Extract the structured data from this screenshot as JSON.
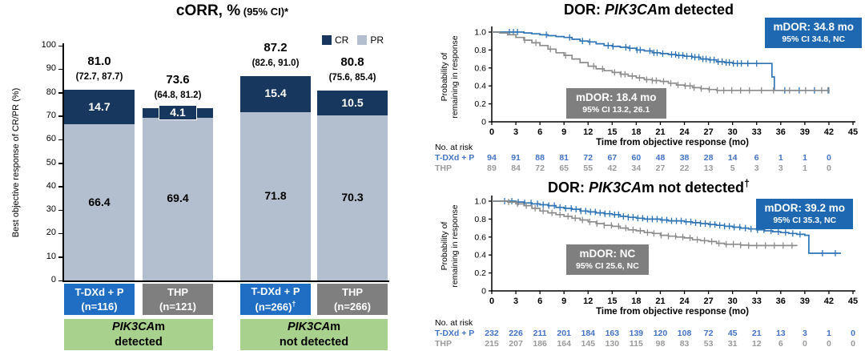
{
  "chart_data": [
    {
      "type": "bar",
      "stacked": true,
      "title": "cORR, %",
      "title_note": "(95% CI)*",
      "ylabel": "Best objective response of CR/PR (%)",
      "ylim": [
        0,
        100
      ],
      "yticks": [
        0,
        10,
        20,
        30,
        40,
        50,
        60,
        70,
        80,
        90,
        100
      ],
      "legend": [
        {
          "label": "CR",
          "color": "#17375E"
        },
        {
          "label": "PR",
          "color": "#B3BECE"
        }
      ],
      "groups": [
        {
          "label_italic": "PIK3CA",
          "label_rest": "m",
          "label_line2": "detected",
          "bars": [
            {
              "arm": "T-DXd + P",
              "n": "(n=116)",
              "sup": "",
              "color": "#1F6EC3",
              "total": "81.0",
              "ci": "(72.7, 87.7)",
              "cr": 14.7,
              "pr": 66.4,
              "cr_label": "14.7",
              "pr_label": "66.4",
              "cr_boxed": false
            },
            {
              "arm": "THP",
              "n": "(n=121)",
              "sup": "",
              "color": "#7F7F7F",
              "total": "73.6",
              "ci": "(64.8, 81.2)",
              "cr": 4.1,
              "pr": 69.4,
              "cr_label": "4.1",
              "pr_label": "69.4",
              "cr_boxed": true
            }
          ]
        },
        {
          "label_italic": "PIK3CA",
          "label_rest": "m",
          "label_line2": "not detected",
          "bars": [
            {
              "arm": "T-DXd + P",
              "n": "(n=266)",
              "sup": "†",
              "color": "#1F6EC3",
              "total": "87.2",
              "ci": "(82.6, 91.0)",
              "cr": 15.4,
              "pr": 71.8,
              "cr_label": "15.4",
              "pr_label": "71.8",
              "cr_boxed": false
            },
            {
              "arm": "THP",
              "n": "(n=266)",
              "sup": "",
              "color": "#7F7F7F",
              "total": "80.8",
              "ci": "(75.6, 85.4)",
              "cr": 10.5,
              "pr": 70.3,
              "cr_label": "10.5",
              "pr_label": "70.3",
              "cr_boxed": false
            }
          ]
        }
      ],
      "group_box_color": "#A9D18E"
    },
    {
      "type": "line",
      "subtype": "kaplan-meier",
      "title_prefix": "DOR: ",
      "title_italic": "PIK3CA",
      "title_suffix": "m detected",
      "title_sup": "",
      "ylabel_lines": [
        "Probability of",
        "remaining in response"
      ],
      "xlabel": "Time from objective response (mo)",
      "xlim": [
        0,
        45
      ],
      "xtick_step": 3,
      "yticks": [
        {
          "v": 0,
          "label": "0"
        },
        {
          "v": 0.2,
          "label": "0.2"
        },
        {
          "v": 0.4,
          "label": "0.4"
        },
        {
          "v": 0.6,
          "label": "0.6"
        },
        {
          "v": 0.8,
          "label": "0.8"
        },
        {
          "v": 1,
          "label": "1.0"
        }
      ],
      "badge_blue": {
        "line1": "mDOR: 34.8 mo",
        "line2": "95% CI 34.8, NC",
        "color": "#1E68B2"
      },
      "badge_gray": {
        "line1": "mDOR: 18.4 mo",
        "line2": "95% CI 13.2, 26.1",
        "color": "#7F7F7F"
      },
      "risk_title": "No. at risk",
      "series": [
        {
          "name": "T-DXd + P",
          "color": "#2E74B5",
          "text_color": "#4273C4",
          "steps": [
            [
              0,
              1.0
            ],
            [
              3,
              1.0
            ],
            [
              4,
              0.99
            ],
            [
              5,
              0.98
            ],
            [
              6,
              0.97
            ],
            [
              7,
              0.96
            ],
            [
              8,
              0.95
            ],
            [
              9,
              0.94
            ],
            [
              10,
              0.92
            ],
            [
              11,
              0.9
            ],
            [
              12,
              0.89
            ],
            [
              13,
              0.87
            ],
            [
              14,
              0.85
            ],
            [
              15,
              0.84
            ],
            [
              16,
              0.83
            ],
            [
              17,
              0.82
            ],
            [
              18,
              0.8
            ],
            [
              19,
              0.79
            ],
            [
              20,
              0.77
            ],
            [
              21,
              0.76
            ],
            [
              22,
              0.75
            ],
            [
              23,
              0.74
            ],
            [
              24,
              0.73
            ],
            [
              25,
              0.72
            ],
            [
              26,
              0.7
            ],
            [
              27,
              0.69
            ],
            [
              28,
              0.67
            ],
            [
              29,
              0.66
            ],
            [
              30,
              0.65
            ],
            [
              34.6,
              0.65
            ],
            [
              34.9,
              0.5
            ],
            [
              35.2,
              0.35
            ],
            [
              42,
              0.34
            ]
          ],
          "censors": [
            2.2,
            2.7,
            3.2,
            6.8,
            9.7,
            11.3,
            12.2,
            14.5,
            15.1,
            16.7,
            17.2,
            18.1,
            18.5,
            19.7,
            20.2,
            20.6,
            21.3,
            22.4,
            22.9,
            23.3,
            23.8,
            24.3,
            24.9,
            25.3,
            25.8,
            26.3,
            26.7,
            27.2,
            27.7,
            28.2,
            28.7,
            29.2,
            29.6,
            30.1,
            30.6,
            31.1,
            31.9,
            33.0,
            36.5,
            38.3,
            40.2,
            41.9
          ],
          "risk": [
            94,
            91,
            88,
            81,
            72,
            67,
            60,
            48,
            38,
            28,
            14,
            6,
            1,
            1,
            0
          ]
        },
        {
          "name": "THP",
          "color": "#8C8C8C",
          "text_color": "#9A9A9A",
          "steps": [
            [
              0,
              1.0
            ],
            [
              1,
              0.99
            ],
            [
              2,
              0.97
            ],
            [
              3,
              0.94
            ],
            [
              4,
              0.91
            ],
            [
              5,
              0.88
            ],
            [
              6,
              0.85
            ],
            [
              7,
              0.81
            ],
            [
              8,
              0.77
            ],
            [
              9,
              0.74
            ],
            [
              10,
              0.7
            ],
            [
              11,
              0.66
            ],
            [
              12,
              0.62
            ],
            [
              13,
              0.59
            ],
            [
              14,
              0.57
            ],
            [
              15,
              0.55
            ],
            [
              16,
              0.53
            ],
            [
              17,
              0.51
            ],
            [
              18,
              0.49
            ],
            [
              19,
              0.47
            ],
            [
              20,
              0.46
            ],
            [
              21,
              0.45
            ],
            [
              22,
              0.43
            ],
            [
              23,
              0.41
            ],
            [
              24,
              0.4
            ],
            [
              25,
              0.38
            ],
            [
              26,
              0.37
            ],
            [
              27,
              0.36
            ],
            [
              28,
              0.35
            ],
            [
              42,
              0.35
            ]
          ],
          "censors": [
            4.1,
            5.5,
            7.3,
            9.2,
            12.7,
            13.8,
            15.3,
            16.1,
            16.6,
            17.5,
            18.4,
            19.3,
            20.0,
            20.5,
            21.4,
            22.3,
            23.2,
            24.1,
            24.7,
            25.2,
            26.1,
            27.1,
            28.1,
            28.9,
            29.9,
            31.0,
            32.1,
            33.6,
            35.1,
            37.1,
            39.1,
            41.1,
            42.0
          ],
          "risk": [
            89,
            84,
            72,
            65,
            55,
            42,
            34,
            27,
            22,
            13,
            5,
            3,
            3,
            1,
            0
          ]
        }
      ]
    },
    {
      "type": "line",
      "subtype": "kaplan-meier",
      "title_prefix": "DOR: ",
      "title_italic": "PIK3CA",
      "title_suffix": "m not detected",
      "title_sup": "†",
      "ylabel_lines": [
        "Probability of",
        "remaining in response"
      ],
      "xlabel": "Time from objective response (mo)",
      "xlim": [
        0,
        45
      ],
      "xtick_step": 3,
      "yticks": [
        {
          "v": 0,
          "label": "0"
        },
        {
          "v": 0.2,
          "label": "0.2"
        },
        {
          "v": 0.4,
          "label": "0.4"
        },
        {
          "v": 0.6,
          "label": "0.6"
        },
        {
          "v": 0.8,
          "label": "0.8"
        },
        {
          "v": 1,
          "label": "1.0"
        }
      ],
      "badge_blue": {
        "line1": "mDOR: 39.2 mo",
        "line2": "95% CI 35.3, NC",
        "color": "#1E68B2"
      },
      "badge_gray": {
        "line1": "mDOR: NC",
        "line2": "95% CI 25.6, NC",
        "color": "#7F7F7F"
      },
      "risk_title": "No. at risk",
      "series": [
        {
          "name": "T-DXd + P",
          "color": "#2E74B5",
          "text_color": "#4273C4",
          "steps": [
            [
              0,
              1.0
            ],
            [
              2,
              1.0
            ],
            [
              3,
              0.99
            ],
            [
              4,
              0.98
            ],
            [
              5,
              0.97
            ],
            [
              6,
              0.96
            ],
            [
              7,
              0.95
            ],
            [
              8,
              0.93
            ],
            [
              9,
              0.92
            ],
            [
              10,
              0.91
            ],
            [
              11,
              0.89
            ],
            [
              12,
              0.88
            ],
            [
              13,
              0.87
            ],
            [
              14,
              0.86
            ],
            [
              15,
              0.85
            ],
            [
              16,
              0.83
            ],
            [
              17,
              0.82
            ],
            [
              18,
              0.81
            ],
            [
              19,
              0.8
            ],
            [
              21,
              0.79
            ],
            [
              22,
              0.78
            ],
            [
              24,
              0.77
            ],
            [
              25,
              0.76
            ],
            [
              26,
              0.75
            ],
            [
              27,
              0.74
            ],
            [
              28,
              0.73
            ],
            [
              29,
              0.72
            ],
            [
              30,
              0.71
            ],
            [
              31,
              0.7
            ],
            [
              32,
              0.69
            ],
            [
              33,
              0.68
            ],
            [
              34,
              0.67
            ],
            [
              35,
              0.66
            ],
            [
              36,
              0.65
            ],
            [
              37,
              0.64
            ],
            [
              38,
              0.63
            ],
            [
              39,
              0.62
            ],
            [
              39.5,
              0.42
            ],
            [
              43.5,
              0.42
            ]
          ],
          "censors": [
            1.6,
            2.5,
            3.3,
            4.1,
            4.9,
            5.7,
            6.4,
            7.1,
            7.8,
            8.5,
            9.2,
            9.9,
            10.5,
            11.1,
            11.7,
            12.3,
            12.9,
            13.5,
            14.1,
            14.7,
            15.3,
            15.8,
            16.4,
            17.0,
            17.6,
            18.2,
            18.8,
            19.4,
            20.0,
            20.6,
            21.2,
            21.8,
            22.4,
            23.0,
            23.6,
            24.2,
            24.8,
            25.4,
            26.0,
            26.6,
            27.2,
            27.8,
            28.4,
            29.0,
            29.6,
            30.2,
            30.9,
            31.6,
            32.3,
            33.1,
            33.9,
            34.8,
            35.7,
            36.6,
            37.5,
            38.4,
            41.2,
            42.8
          ],
          "risk": [
            232,
            226,
            211,
            201,
            184,
            163,
            139,
            120,
            108,
            72,
            45,
            21,
            13,
            3,
            1,
            0
          ]
        },
        {
          "name": "THP",
          "color": "#8C8C8C",
          "text_color": "#9A9A9A",
          "steps": [
            [
              0,
              1.0
            ],
            [
              2,
              0.99
            ],
            [
              3,
              0.97
            ],
            [
              4,
              0.95
            ],
            [
              5,
              0.92
            ],
            [
              6,
              0.89
            ],
            [
              7,
              0.87
            ],
            [
              8,
              0.85
            ],
            [
              9,
              0.83
            ],
            [
              10,
              0.81
            ],
            [
              11,
              0.79
            ],
            [
              12,
              0.77
            ],
            [
              13,
              0.75
            ],
            [
              14,
              0.73
            ],
            [
              15,
              0.72
            ],
            [
              16,
              0.7
            ],
            [
              17,
              0.68
            ],
            [
              18,
              0.67
            ],
            [
              19,
              0.65
            ],
            [
              20,
              0.64
            ],
            [
              21,
              0.62
            ],
            [
              22,
              0.61
            ],
            [
              23,
              0.6
            ],
            [
              24,
              0.59
            ],
            [
              25,
              0.57
            ],
            [
              26,
              0.56
            ],
            [
              27,
              0.55
            ],
            [
              28,
              0.53
            ],
            [
              29,
              0.52
            ],
            [
              31,
              0.51
            ],
            [
              32,
              0.505
            ],
            [
              38,
              0.5
            ]
          ],
          "censors": [
            2.1,
            3.2,
            4.3,
            5.4,
            6.4,
            7.5,
            8.5,
            9.5,
            10.4,
            11.3,
            12.2,
            13.1,
            14.0,
            14.9,
            15.8,
            16.7,
            17.6,
            18.5,
            19.4,
            20.2,
            21.1,
            22.0,
            22.9,
            23.8,
            24.7,
            25.6,
            26.5,
            27.4,
            28.3,
            29.2,
            30.1,
            31.0,
            32.0,
            33.0,
            34.1,
            35.2,
            36.3,
            37.4
          ],
          "risk": [
            215,
            207,
            186,
            164,
            145,
            130,
            115,
            98,
            83,
            53,
            31,
            12,
            6,
            0,
            0,
            0
          ]
        }
      ]
    }
  ]
}
